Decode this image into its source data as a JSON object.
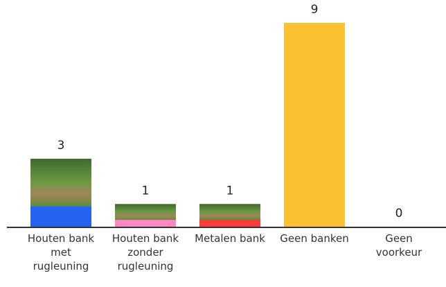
{
  "chart_data": {
    "type": "bar",
    "categories": [
      "Houten bank met rugleuning",
      "Houten bank zonder rugleuning",
      "Metalen bank",
      "Geen banken",
      "Geen voorkeur"
    ],
    "values": [
      3,
      1,
      1,
      9,
      0
    ],
    "colors": [
      "#2563f0",
      "#ff85c4",
      "#ff3b3b",
      "#fbc132",
      "#888888"
    ],
    "images": [
      true,
      true,
      true,
      false,
      false
    ]
  }
}
